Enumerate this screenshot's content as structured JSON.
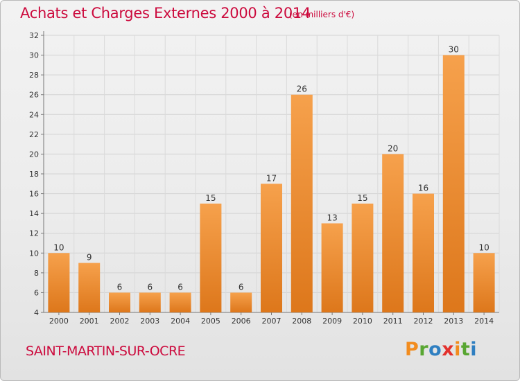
{
  "header": {
    "title": "Achats et Charges Externes 2000 à 2014",
    "subtitle": "(en milliers d'€)"
  },
  "footer": {
    "commune": "SAINT-MARTIN-SUR-OCRE",
    "brand": [
      "P",
      "r",
      "o",
      "x",
      "i",
      "t",
      "i"
    ],
    "brand_colors": [
      "#f28c1e",
      "#58a632",
      "#2f7fc1",
      "#e3312d",
      "#f28c1e",
      "#58a632",
      "#2f7fc1"
    ]
  },
  "colors": {
    "bar_light": "#f6a14c",
    "bar_dark": "#dd771b",
    "title": "#cc0a3d"
  },
  "chart_data": {
    "type": "bar",
    "title": "Achats et Charges Externes 2000 à 2014",
    "subtitle": "(en milliers d'€)",
    "categories": [
      "2000",
      "2001",
      "2002",
      "2003",
      "2004",
      "2005",
      "2006",
      "2007",
      "2008",
      "2009",
      "2010",
      "2011",
      "2012",
      "2013",
      "2014"
    ],
    "values": [
      10,
      9,
      6,
      6,
      6,
      15,
      6,
      17,
      26,
      13,
      15,
      20,
      16,
      30,
      10
    ],
    "ylim": [
      4,
      32
    ],
    "yticks": [
      4,
      6,
      8,
      10,
      12,
      14,
      16,
      18,
      20,
      22,
      24,
      26,
      28,
      30,
      32
    ],
    "grid": true,
    "xlabel": "",
    "ylabel": ""
  }
}
